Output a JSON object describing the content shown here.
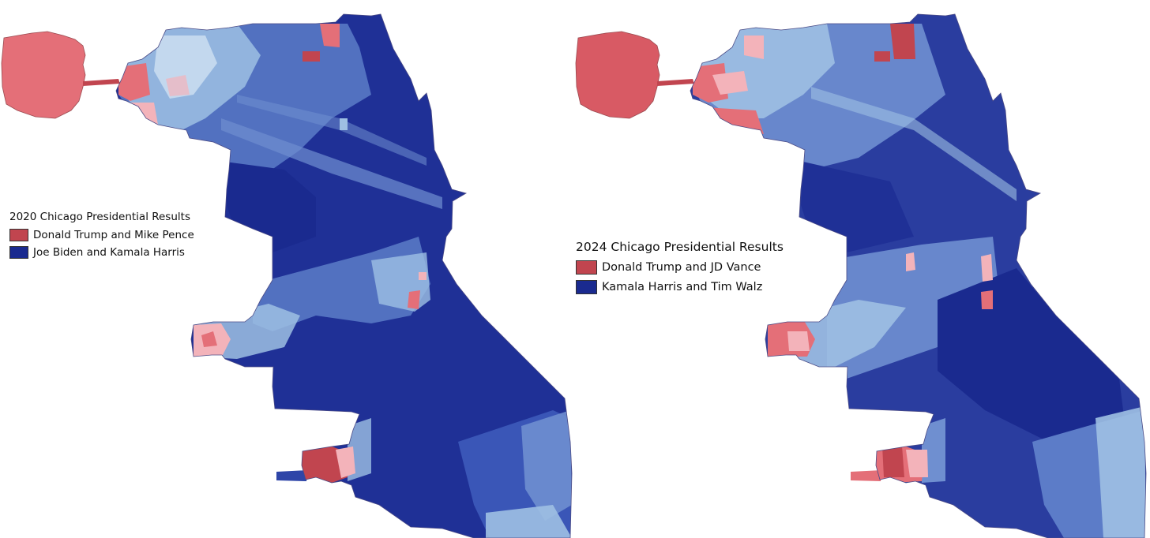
{
  "colors": {
    "rep_dark": "#c1454f",
    "rep": "#e46f78",
    "rep_light": "#f3b3ba",
    "dem_dark": "#1a2a8f",
    "dem": "#2e45a8",
    "dem_mid": "#5c7cc8",
    "dem_light": "#9ec0e3",
    "border": "#6a6a9a"
  },
  "maps": [
    {
      "id": "2020",
      "legend": {
        "title": "2020 Chicago Presidential Results",
        "items": [
          {
            "label": "Donald Trump and Mike Pence",
            "color": "#c1454f"
          },
          {
            "label": "Joe Biden and Kamala Harris",
            "color": "#1a2a8f"
          }
        ]
      }
    },
    {
      "id": "2024",
      "legend": {
        "title": "2024 Chicago Presidential Results",
        "items": [
          {
            "label": "Donald Trump and JD Vance",
            "color": "#c1454f"
          },
          {
            "label": "Kamala Harris and Tim Walz",
            "color": "#1a2a8f"
          }
        ]
      }
    }
  ]
}
